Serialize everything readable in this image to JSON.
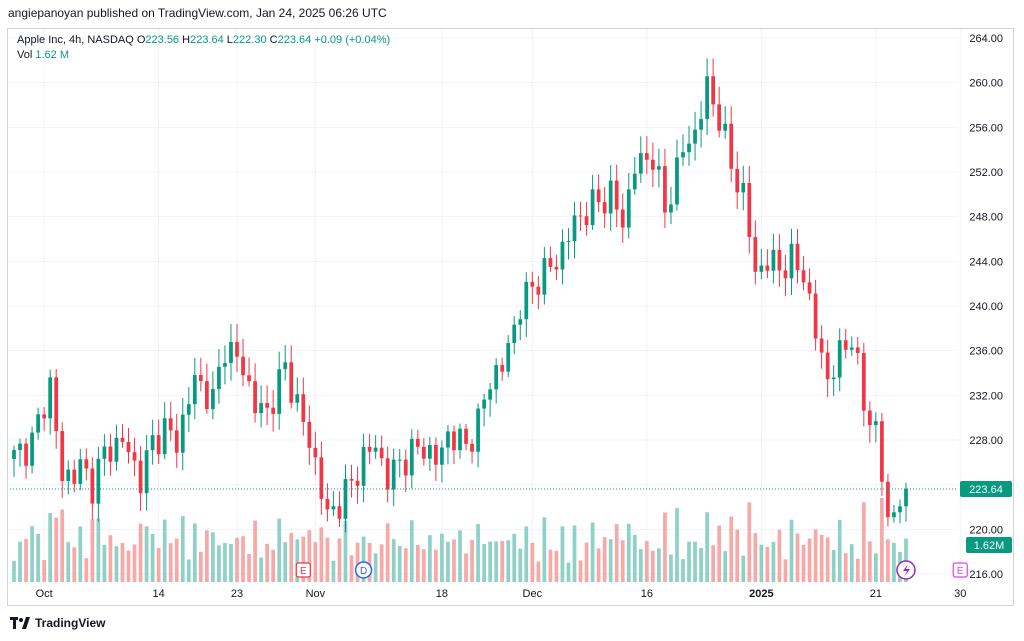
{
  "header": {
    "published": "angiepanoyan published on TradingView.com, Jan 24, 2025 06:26 UTC"
  },
  "legend": {
    "symbol": "Apple Inc, 4h, NASDAQ",
    "o_label": "O",
    "o_value": "223.56",
    "h_label": "H",
    "h_value": "223.64",
    "l_label": "L",
    "l_value": "222.30",
    "c_label": "C",
    "c_value": "223.64",
    "change": "+0.09 (+0.04%)",
    "vol_label": "Vol",
    "vol_value": "1.62 M"
  },
  "price_tag": "223.64",
  "volume_tag": "1.62M",
  "event_markers": [
    {
      "letter": "E",
      "at": "Oct 31",
      "color": "#f23645"
    },
    {
      "letter": "D",
      "at": "Nov 8",
      "color": "#2962ff"
    },
    {
      "letter": "E",
      "at": "Jan 30",
      "color": "#e040fb"
    }
  ],
  "footer": {
    "brand": "TradingView"
  },
  "colors": {
    "up": "#089981",
    "down": "#f23645",
    "up_vol": "#8fd1c7",
    "down_vol": "#f7a9a7",
    "grid": "#f0f3fa"
  },
  "chart_data": {
    "type": "candlestick",
    "title": "Apple Inc, 4h, NASDAQ",
    "ylim": [
      214,
      266
    ],
    "y_ticks": [
      "264.00",
      "260.00",
      "256.00",
      "252.00",
      "248.00",
      "244.00",
      "240.00",
      "236.00",
      "232.00",
      "228.00",
      "224.00",
      "220.00",
      "216.00"
    ],
    "x_ticks": [
      "Oct",
      "14",
      "23",
      "Nov",
      "18",
      "Dec",
      "16",
      "2025",
      "21",
      "30"
    ],
    "last_price": 223.64,
    "anchors": [
      [
        0,
        226.5
      ],
      [
        3,
        227.8
      ],
      [
        6,
        233.0
      ],
      [
        8,
        224.5
      ],
      [
        11,
        225.5
      ],
      [
        13,
        224.0
      ],
      [
        15,
        226.8
      ],
      [
        18,
        228.0
      ],
      [
        21,
        224.5
      ],
      [
        23,
        227.8
      ],
      [
        25,
        229.0
      ],
      [
        27,
        227.8
      ],
      [
        30,
        233.5
      ],
      [
        33,
        231.5
      ],
      [
        35,
        236.5
      ],
      [
        38,
        234.5
      ],
      [
        40,
        231.0
      ],
      [
        42,
        230.5
      ],
      [
        45,
        234.5
      ],
      [
        48,
        229.5
      ],
      [
        50,
        226.0
      ],
      [
        52,
        221.0
      ],
      [
        54,
        222.5
      ],
      [
        56,
        224.0
      ],
      [
        58,
        226.5
      ],
      [
        60,
        227.5
      ],
      [
        62,
        224.5
      ],
      [
        64,
        226.0
      ],
      [
        66,
        226.8
      ],
      [
        68,
        227.5
      ],
      [
        70,
        226.0
      ],
      [
        72,
        228.5
      ],
      [
        75,
        227.5
      ],
      [
        77,
        229.5
      ],
      [
        79,
        233.5
      ],
      [
        81,
        234.5
      ],
      [
        84,
        240.0
      ],
      [
        87,
        242.5
      ],
      [
        90,
        244.0
      ],
      [
        93,
        247.5
      ],
      [
        96,
        249.0
      ],
      [
        99,
        250.0
      ],
      [
        101,
        247.5
      ],
      [
        103,
        252.5
      ],
      [
        106,
        253.5
      ],
      [
        108,
        248.5
      ],
      [
        111,
        254.0
      ],
      [
        113,
        255.5
      ],
      [
        115,
        259.5
      ],
      [
        117,
        257.0
      ],
      [
        119,
        252.5
      ],
      [
        121,
        250.0
      ],
      [
        123,
        243.0
      ],
      [
        125,
        244.0
      ],
      [
        127,
        243.5
      ],
      [
        129,
        244.0
      ],
      [
        131,
        243.0
      ],
      [
        133,
        237.5
      ],
      [
        135,
        233.5
      ],
      [
        137,
        235.5
      ],
      [
        139,
        237.5
      ],
      [
        141,
        231.0
      ],
      [
        143,
        229.0
      ],
      [
        145,
        220.5
      ],
      [
        147,
        223.0
      ],
      [
        148,
        223.64
      ]
    ]
  }
}
